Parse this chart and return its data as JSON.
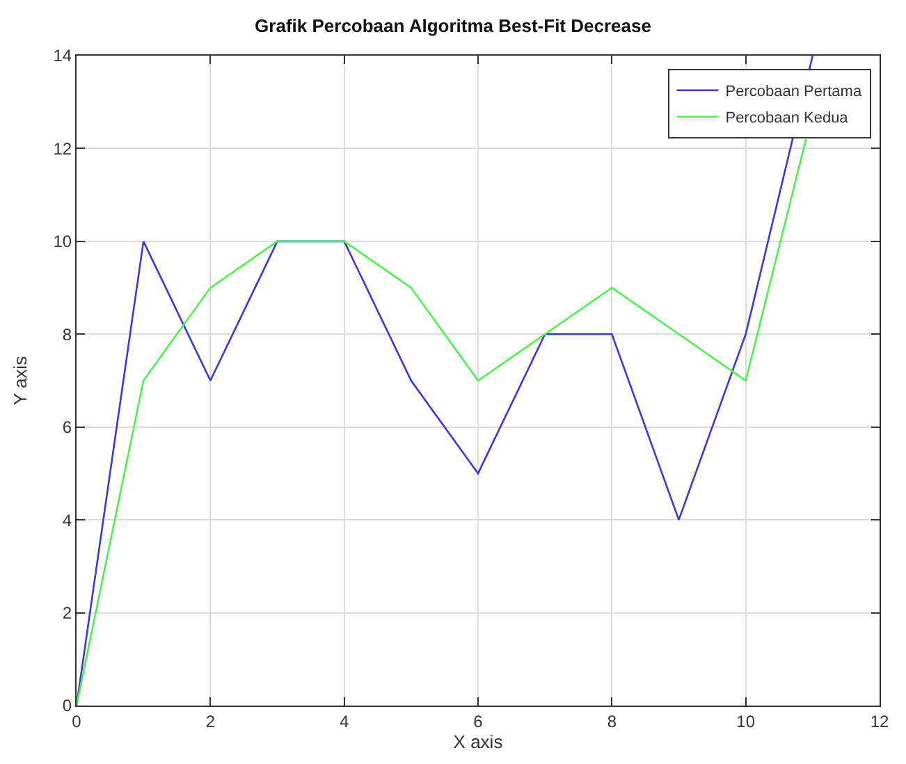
{
  "chart_data": {
    "type": "line",
    "title": "Grafik Percobaan Algoritma Best-Fit Decrease",
    "xlabel": "X axis",
    "ylabel": "Y axis",
    "x": [
      0,
      1,
      2,
      3,
      4,
      5,
      6,
      7,
      8,
      9,
      10,
      11
    ],
    "series": [
      {
        "name": "Percobaan Pertama",
        "color": "#3a3ad0",
        "values": [
          0,
          10,
          7,
          10,
          10,
          7,
          5,
          8,
          8,
          4,
          8,
          14
        ]
      },
      {
        "name": "Percobaan Kedua",
        "color": "#50ef50",
        "x": [
          0,
          1,
          2,
          3,
          4,
          5,
          6,
          7,
          8,
          9,
          10,
          10.9
        ],
        "values": [
          0,
          7,
          9,
          10,
          10,
          9,
          7,
          8,
          9,
          8,
          7,
          12.2
        ]
      }
    ],
    "xlim": [
      0,
      12
    ],
    "xticks": [
      0,
      2,
      4,
      6,
      8,
      10,
      12
    ],
    "ylim": [
      0,
      14
    ],
    "yticks": [
      0,
      2,
      4,
      6,
      8,
      10,
      12,
      14
    ],
    "grid": true,
    "legend": "top right",
    "marker": "none",
    "line_style": "solid"
  }
}
